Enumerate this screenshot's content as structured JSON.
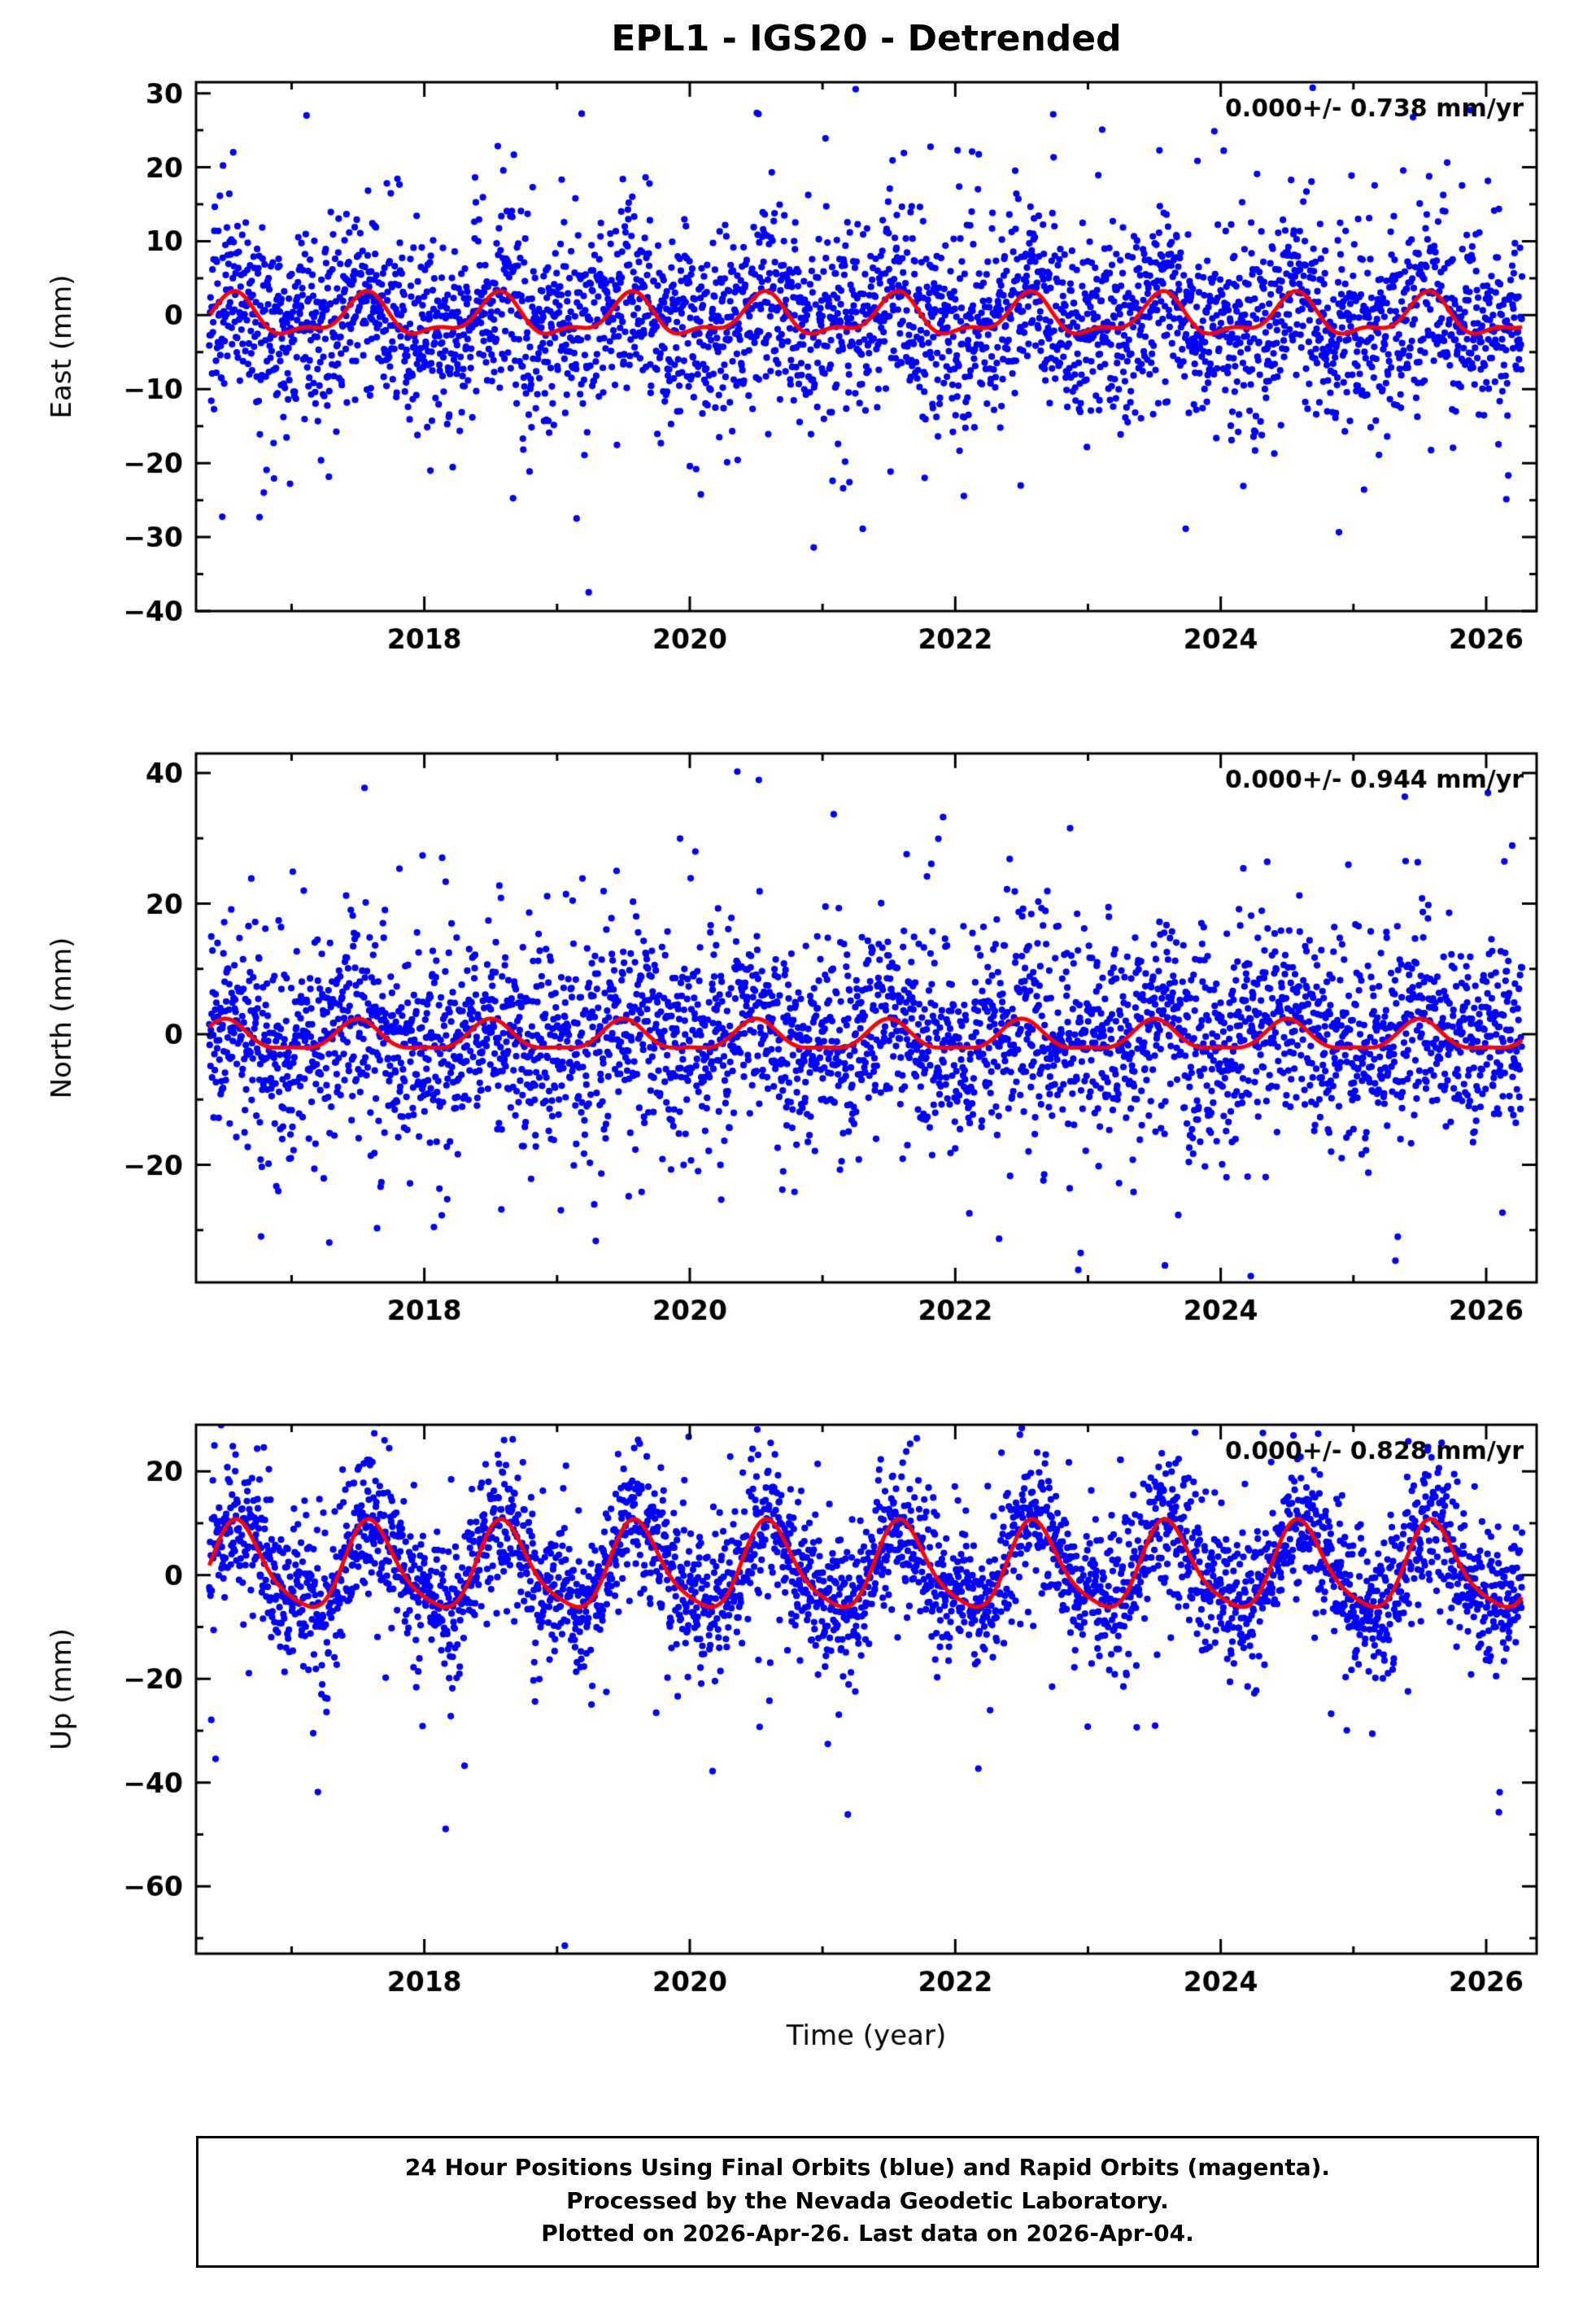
{
  "page": {
    "title": "EPL1 - IGS20 - Detrended"
  },
  "colors": {
    "points": "#0000ff",
    "model_line": "#ff0000",
    "axes": "#000000",
    "background": "#ffffff"
  },
  "footer": {
    "lines": [
      "24 Hour Positions Using Final Orbits (blue) and Rapid Orbits (magenta).",
      "Processed by the Nevada Geodetic Laboratory.",
      "Plotted on 2026-Apr-26. Last data on 2026-Apr-04."
    ]
  },
  "chart_data": [
    {
      "id": "east",
      "type": "scatter",
      "ylabel": "East (mm)",
      "xlabel": "",
      "annotation": "0.000+/- 0.738 mm/yr",
      "xlim": [
        2016.28,
        2026.38
      ],
      "ylim": [
        -40,
        31.5
      ],
      "xticks": [
        2018,
        2020,
        2022,
        2024,
        2026
      ],
      "yticks": [
        30,
        20,
        10,
        0,
        -10,
        -20,
        -30,
        -40
      ],
      "x_minor_step": 1,
      "y_minor_step": 5,
      "data_start": 2016.38,
      "data_end": 2026.27,
      "n_points": 3350,
      "seed": 101,
      "noise_std": 5.8,
      "model": {
        "offset": -0.3,
        "annual_amplitude": 2.5,
        "annual_peak": 0.55,
        "semiannual_amplitude": 1.1,
        "semiannual_peak": 0.08
      },
      "point_color": "#0000ff",
      "model_color": "#ff0000"
    },
    {
      "id": "north",
      "type": "scatter",
      "ylabel": "North (mm)",
      "xlabel": "",
      "annotation": "0.000+/- 0.944 mm/yr",
      "xlim": [
        2016.28,
        2026.38
      ],
      "ylim": [
        -38,
        43
      ],
      "xticks": [
        2018,
        2020,
        2022,
        2024,
        2026
      ],
      "yticks": [
        40,
        20,
        0,
        -20
      ],
      "x_minor_step": 1,
      "y_minor_step": 10,
      "data_start": 2016.38,
      "data_end": 2026.27,
      "n_points": 3350,
      "seed": 202,
      "noise_std": 7.0,
      "model": {
        "offset": -0.5,
        "annual_amplitude": 2.2,
        "annual_peak": 0.5,
        "semiannual_amplitude": 0.7,
        "semiannual_peak": 0.0
      },
      "point_color": "#0000ff",
      "model_color": "#ff0000"
    },
    {
      "id": "up",
      "type": "scatter",
      "ylabel": "Up (mm)",
      "xlabel": "Time (year)",
      "annotation": "0.000+/- 0.828 mm/yr",
      "xlim": [
        2016.28,
        2026.38
      ],
      "ylim": [
        -73,
        29
      ],
      "xticks": [
        2018,
        2020,
        2022,
        2024,
        2026
      ],
      "yticks": [
        20,
        0,
        -20,
        -40,
        -60
      ],
      "x_minor_step": 1,
      "y_minor_step": 10,
      "data_start": 2016.38,
      "data_end": 2026.27,
      "n_points": 3350,
      "seed": 303,
      "noise_std": 6.2,
      "model": {
        "offset": 1.2,
        "annual_amplitude": 8.2,
        "annual_peak": 0.6,
        "semiannual_amplitude": 1.6,
        "semiannual_peak": 0.05
      },
      "point_color": "#0000ff",
      "model_color": "#ff0000"
    }
  ]
}
